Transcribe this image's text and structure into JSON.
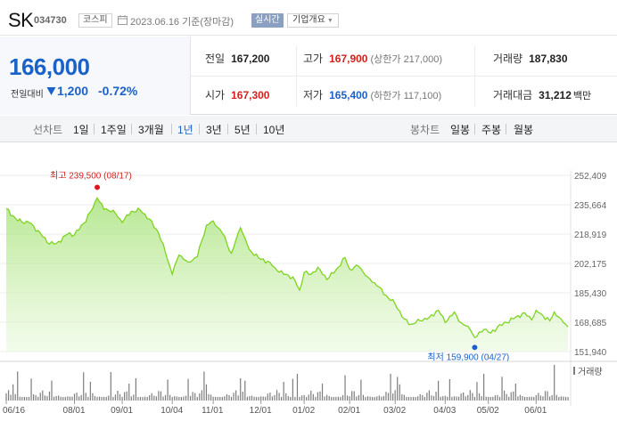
{
  "header": {
    "name": "SK",
    "code": "034730",
    "market": "코스피",
    "date": "2023.06.16 기준(장마감)",
    "live_label": "실시간",
    "company_info_label": "기업개요"
  },
  "price": {
    "current": "166,000",
    "change_label": "전일대비",
    "change_value": "1,200",
    "change_percent": "-0.72%",
    "direction": "down"
  },
  "stats": {
    "prev_close": {
      "label": "전일",
      "value": "167,200"
    },
    "high": {
      "label": "고가",
      "value": "167,900",
      "limit": "(상한가 217,000)"
    },
    "volume": {
      "label": "거래량",
      "value": "187,830"
    },
    "open": {
      "label": "시가",
      "value": "167,300"
    },
    "low": {
      "label": "저가",
      "value": "165,400",
      "limit": "(하한가 117,100)"
    },
    "trade_amount": {
      "label": "거래대금",
      "value": "31,212",
      "unit": "백만"
    }
  },
  "tabs": {
    "line_chart_label": "선차트",
    "line_items": [
      "1일",
      "1주일",
      "3개월",
      "1년",
      "3년",
      "5년",
      "10년"
    ],
    "active": "1년",
    "candle_chart_label": "봉차트",
    "candle_items": [
      "일봉",
      "주봉",
      "월봉"
    ]
  },
  "colors": {
    "price_down": "#1b62c8",
    "price_up": "#d51e1e",
    "line": "#7ed321",
    "area_fill": "#c8f0a8",
    "volume_bar": "#7d7d7d"
  },
  "chart_data": {
    "type": "area",
    "y_ticks": [
      "252,409",
      "235,664",
      "218,919",
      "202,175",
      "185,430",
      "168,685",
      "151,940"
    ],
    "ylim": [
      151940,
      252409
    ],
    "x_ticks": [
      "06/16",
      "08/01",
      "09/01",
      "10/04",
      "11/01",
      "12/01",
      "01/02",
      "02/01",
      "03/02",
      "04/03",
      "05/02",
      "06/01"
    ],
    "x_tick_index": [
      0,
      30,
      51,
      73,
      91,
      112,
      131,
      151,
      171,
      193,
      212,
      233
    ],
    "x_total": 248,
    "annotations": {
      "high_label": "최고 239,500 (08/17)",
      "high_value": 239500,
      "high_index": 40,
      "low_label": "최저 159,900 (04/27)",
      "low_value": 159900,
      "low_index": 206
    },
    "volume_label": "거래량",
    "price_series": [
      [
        0,
        233500
      ],
      [
        5,
        226500
      ],
      [
        10,
        225500
      ],
      [
        15,
        219500
      ],
      [
        18,
        214000
      ],
      [
        22,
        213500
      ],
      [
        27,
        219000
      ],
      [
        30,
        218500
      ],
      [
        34,
        225000
      ],
      [
        38,
        233500
      ],
      [
        40,
        239500
      ],
      [
        43,
        233000
      ],
      [
        47,
        232500
      ],
      [
        51,
        225500
      ],
      [
        55,
        232000
      ],
      [
        59,
        232500
      ],
      [
        63,
        227500
      ],
      [
        67,
        219500
      ],
      [
        70,
        208500
      ],
      [
        73,
        196000
      ],
      [
        76,
        207000
      ],
      [
        80,
        203000
      ],
      [
        84,
        206000
      ],
      [
        88,
        224000
      ],
      [
        91,
        226500
      ],
      [
        95,
        219500
      ],
      [
        99,
        208000
      ],
      [
        103,
        222500
      ],
      [
        107,
        210000
      ],
      [
        112,
        204500
      ],
      [
        115,
        203500
      ],
      [
        118,
        200000
      ],
      [
        122,
        196000
      ],
      [
        126,
        194500
      ],
      [
        129,
        187000
      ],
      [
        131,
        197000
      ],
      [
        134,
        196000
      ],
      [
        137,
        200000
      ],
      [
        141,
        193000
      ],
      [
        145,
        198500
      ],
      [
        149,
        205500
      ],
      [
        151,
        199000
      ],
      [
        155,
        200500
      ],
      [
        159,
        194500
      ],
      [
        163,
        189500
      ],
      [
        167,
        184000
      ],
      [
        171,
        179000
      ],
      [
        175,
        170500
      ],
      [
        178,
        167500
      ],
      [
        182,
        169500
      ],
      [
        186,
        171500
      ],
      [
        190,
        175500
      ],
      [
        193,
        168500
      ],
      [
        197,
        174500
      ],
      [
        200,
        168500
      ],
      [
        204,
        164500
      ],
      [
        206,
        159900
      ],
      [
        210,
        164500
      ],
      [
        213,
        162500
      ],
      [
        216,
        166000
      ],
      [
        220,
        168500
      ],
      [
        224,
        171500
      ],
      [
        228,
        174000
      ],
      [
        231,
        170000
      ],
      [
        233,
        175500
      ],
      [
        236,
        172500
      ],
      [
        239,
        169500
      ],
      [
        241,
        174500
      ],
      [
        244,
        170500
      ],
      [
        247,
        166000
      ]
    ]
  }
}
